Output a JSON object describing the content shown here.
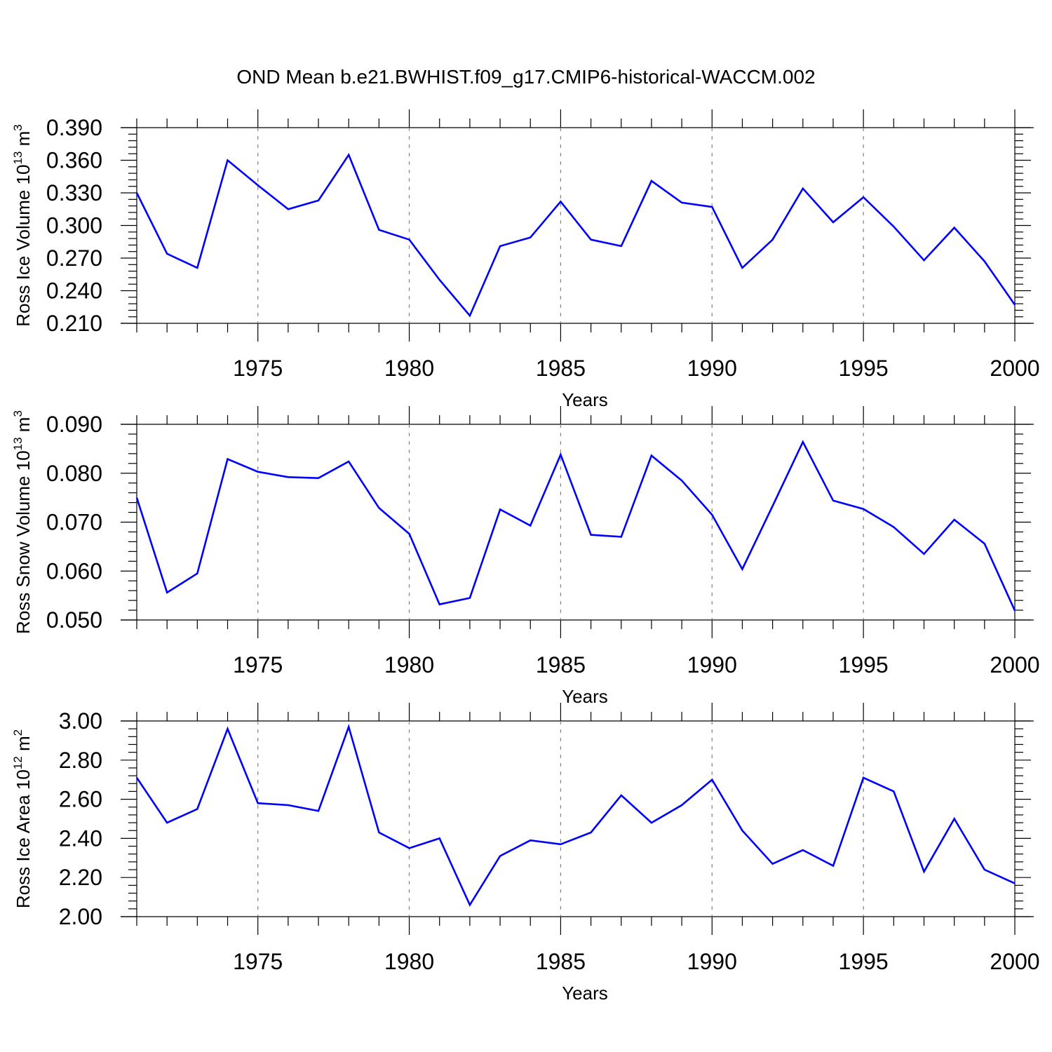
{
  "figure": {
    "title": "OND Mean b.e21.BWHIST.f09_g17.CMIP6-historical-WACCM.002",
    "line_color": "#0000ff",
    "grid_color": "#8a8a8a"
  },
  "chart_data": [
    {
      "type": "line",
      "title": "",
      "xlabel": "Years",
      "ylabel": {
        "text": "Ross Ice Volume 10",
        "sup1": "13",
        "unit": " m",
        "sup2": "3"
      },
      "xlim": [
        1971,
        2000
      ],
      "ylim": [
        0.21,
        0.39
      ],
      "xticks": [
        1975,
        1980,
        1985,
        1990,
        1995,
        2000
      ],
      "xtick_labels": [
        "1975",
        "1980",
        "1985",
        "1990",
        "1995",
        "2000"
      ],
      "yticks": [
        0.21,
        0.24,
        0.27,
        0.3,
        0.33,
        0.36,
        0.39
      ],
      "ytick_labels": [
        "0.210",
        "0.240",
        "0.270",
        "0.300",
        "0.330",
        "0.360",
        "0.390"
      ],
      "grid": "vertical dashed at major x ticks",
      "x": [
        1971,
        1972,
        1973,
        1974,
        1975,
        1976,
        1977,
        1978,
        1979,
        1980,
        1981,
        1982,
        1983,
        1984,
        1985,
        1986,
        1987,
        1988,
        1989,
        1990,
        1991,
        1992,
        1993,
        1994,
        1995,
        1996,
        1997,
        1998,
        1999,
        2000
      ],
      "y": [
        0.33,
        0.274,
        0.261,
        0.36,
        0.337,
        0.315,
        0.323,
        0.365,
        0.296,
        0.287,
        0.25,
        0.217,
        0.281,
        0.289,
        0.322,
        0.287,
        0.281,
        0.341,
        0.321,
        0.317,
        0.261,
        0.287,
        0.334,
        0.303,
        0.326,
        0.299,
        0.268,
        0.298,
        0.267,
        0.227
      ]
    },
    {
      "type": "line",
      "title": "",
      "xlabel": "Years",
      "ylabel": {
        "text": "Ross Snow Volume 10",
        "sup1": "13",
        "unit": " m",
        "sup2": "3"
      },
      "xlim": [
        1971,
        2000
      ],
      "ylim": [
        0.05,
        0.09
      ],
      "xticks": [
        1975,
        1980,
        1985,
        1990,
        1995,
        2000
      ],
      "xtick_labels": [
        "1975",
        "1980",
        "1985",
        "1990",
        "1995",
        "2000"
      ],
      "yticks": [
        0.05,
        0.06,
        0.07,
        0.08,
        0.09
      ],
      "ytick_labels": [
        "0.050",
        "0.060",
        "0.070",
        "0.080",
        "0.090"
      ],
      "grid": "vertical dashed at major x ticks",
      "x": [
        1971,
        1972,
        1973,
        1974,
        1975,
        1976,
        1977,
        1978,
        1979,
        1980,
        1981,
        1982,
        1983,
        1984,
        1985,
        1986,
        1987,
        1988,
        1989,
        1990,
        1991,
        1992,
        1993,
        1994,
        1995,
        1996,
        1997,
        1998,
        1999,
        2000
      ],
      "y": [
        0.075,
        0.0556,
        0.0595,
        0.0829,
        0.0803,
        0.0792,
        0.079,
        0.0824,
        0.0729,
        0.0676,
        0.0532,
        0.0545,
        0.0726,
        0.0693,
        0.0838,
        0.0674,
        0.067,
        0.0836,
        0.0785,
        0.0715,
        0.0604,
        0.0733,
        0.0864,
        0.0744,
        0.0727,
        0.069,
        0.0635,
        0.0705,
        0.0656,
        0.0519
      ]
    },
    {
      "type": "line",
      "title": "",
      "xlabel": "Years",
      "ylabel": {
        "text": "Ross Ice Area 10",
        "sup1": "12",
        "unit": " m",
        "sup2": "2"
      },
      "xlim": [
        1971,
        2000
      ],
      "ylim": [
        2.0,
        3.0
      ],
      "xticks": [
        1975,
        1980,
        1985,
        1990,
        1995,
        2000
      ],
      "xtick_labels": [
        "1975",
        "1980",
        "1985",
        "1990",
        "1995",
        "2000"
      ],
      "yticks": [
        2.0,
        2.2,
        2.4,
        2.6,
        2.8,
        3.0
      ],
      "ytick_labels": [
        "2.00",
        "2.20",
        "2.40",
        "2.60",
        "2.80",
        "3.00"
      ],
      "grid": "vertical dashed at major x ticks",
      "x": [
        1971,
        1972,
        1973,
        1974,
        1975,
        1976,
        1977,
        1978,
        1979,
        1980,
        1981,
        1982,
        1983,
        1984,
        1985,
        1986,
        1987,
        1988,
        1989,
        1990,
        1991,
        1992,
        1993,
        1994,
        1995,
        1996,
        1997,
        1998,
        1999,
        2000
      ],
      "y": [
        2.71,
        2.48,
        2.55,
        2.96,
        2.58,
        2.57,
        2.54,
        2.97,
        2.43,
        2.35,
        2.4,
        2.06,
        2.31,
        2.39,
        2.37,
        2.43,
        2.62,
        2.48,
        2.57,
        2.7,
        2.44,
        2.27,
        2.34,
        2.26,
        2.71,
        2.64,
        2.23,
        2.5,
        2.24,
        2.17
      ]
    }
  ]
}
